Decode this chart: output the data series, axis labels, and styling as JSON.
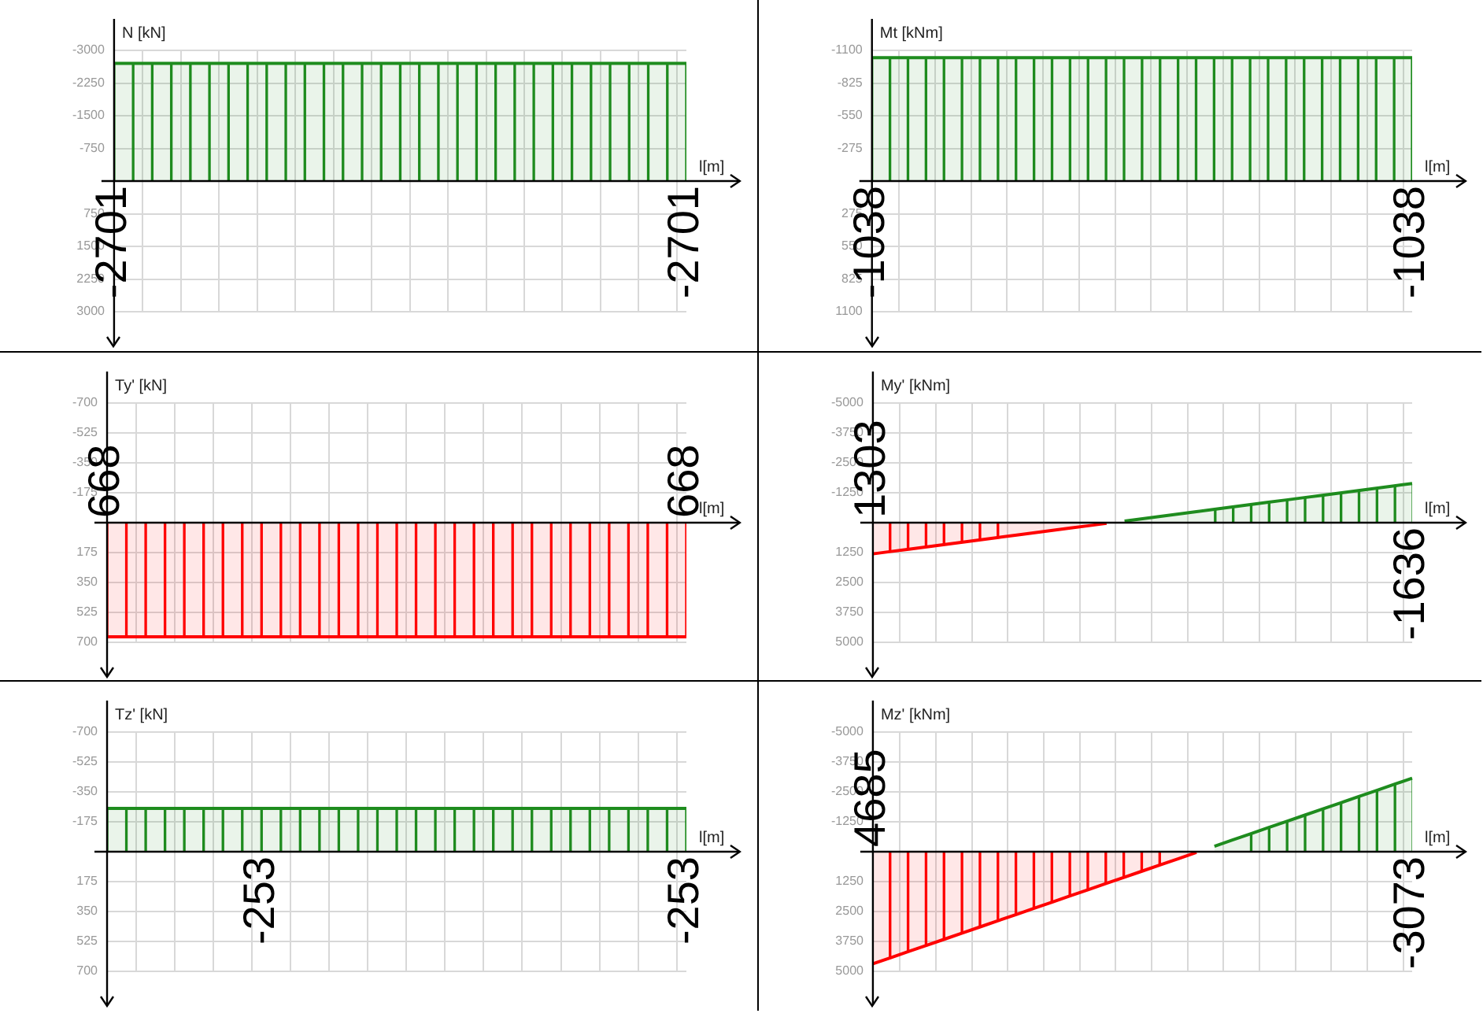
{
  "chart_data": [
    {
      "type": "area",
      "ylabel": "N [kN]",
      "xlabel": "l[m]",
      "categories": [
        null,
        null,
        null,
        null,
        null,
        null,
        null,
        null,
        null,
        null,
        null,
        null,
        null,
        null,
        null,
        null,
        null,
        null,
        null,
        null,
        null,
        null,
        null,
        null,
        null,
        null,
        null,
        null,
        null,
        null,
        null
      ],
      "series": [
        {
          "color": "#1e8c1e",
          "values": [
            -2701,
            -2701,
            -2701,
            -2701,
            -2701,
            -2701,
            -2701,
            -2701,
            -2701,
            -2701,
            -2701,
            -2701,
            -2701,
            -2701,
            -2701,
            -2701,
            -2701,
            -2701,
            -2701,
            -2701,
            -2701,
            -2701,
            -2701,
            -2701,
            -2701,
            -2701,
            -2701,
            -2701,
            -2701,
            -2701,
            -2701
          ],
          "value_labels": [
            "-2701",
            null,
            null,
            null,
            null,
            null,
            null,
            null,
            null,
            null,
            null,
            null,
            null,
            null,
            null,
            null,
            null,
            null,
            null,
            null,
            null,
            null,
            null,
            null,
            null,
            null,
            null,
            null,
            null,
            null,
            "-2701"
          ]
        }
      ],
      "ylim": [
        3000,
        -3000
      ],
      "yticks": [
        -3000,
        -2250,
        -1500,
        -750,
        750,
        1500,
        2250,
        3000
      ],
      "grid": true,
      "tick_labels": "y"
    },
    {
      "type": "area",
      "ylabel": "Mt [kNm]",
      "xlabel": "l[m]",
      "categories": [
        null,
        null,
        null,
        null,
        null,
        null,
        null,
        null,
        null,
        null,
        null,
        null,
        null,
        null,
        null,
        null,
        null,
        null,
        null,
        null,
        null,
        null,
        null,
        null,
        null,
        null,
        null,
        null,
        null,
        null,
        null
      ],
      "series": [
        {
          "color": "#1e8c1e",
          "values": [
            -1038,
            -1038,
            -1038,
            -1038,
            -1038,
            -1038,
            -1038,
            -1038,
            -1038,
            -1038,
            -1038,
            -1038,
            -1038,
            -1038,
            -1038,
            -1038,
            -1038,
            -1038,
            -1038,
            -1038,
            -1038,
            -1038,
            -1038,
            -1038,
            -1038,
            -1038,
            -1038,
            -1038,
            -1038,
            -1038,
            -1038
          ],
          "value_labels": [
            "-1038",
            null,
            null,
            null,
            null,
            null,
            null,
            null,
            null,
            null,
            null,
            null,
            null,
            null,
            null,
            null,
            null,
            null,
            null,
            null,
            null,
            null,
            null,
            null,
            null,
            null,
            null,
            null,
            null,
            null,
            "-1038"
          ]
        }
      ],
      "ylim": [
        1100,
        -1100
      ],
      "yticks": [
        -1100,
        -825,
        -550,
        -275,
        275,
        550,
        825,
        1100
      ],
      "grid": true,
      "tick_labels": "y"
    },
    {
      "type": "area",
      "ylabel": "Ty' [kN]",
      "xlabel": "l[m]",
      "categories": [
        null,
        null,
        null,
        null,
        null,
        null,
        null,
        null,
        null,
        null,
        null,
        null,
        null,
        null,
        null,
        null,
        null,
        null,
        null,
        null,
        null,
        null,
        null,
        null,
        null,
        null,
        null,
        null,
        null,
        null,
        null
      ],
      "series": [
        {
          "color": "#ff0000",
          "values": [
            668,
            668,
            668,
            668,
            668,
            668,
            668,
            668,
            668,
            668,
            668,
            668,
            668,
            668,
            668,
            668,
            668,
            668,
            668,
            668,
            668,
            668,
            668,
            668,
            668,
            668,
            668,
            668,
            668,
            668,
            668
          ],
          "value_labels": [
            "668",
            null,
            null,
            null,
            null,
            null,
            null,
            null,
            null,
            null,
            null,
            null,
            null,
            null,
            null,
            null,
            null,
            null,
            null,
            null,
            null,
            null,
            null,
            null,
            null,
            null,
            null,
            null,
            null,
            null,
            "668"
          ]
        }
      ],
      "ylim": [
        700,
        -700
      ],
      "yticks": [
        -700,
        -525,
        -350,
        -175,
        175,
        350,
        525,
        700
      ],
      "grid": true,
      "tick_labels": "y"
    },
    {
      "type": "area",
      "ylabel": "My' [kNm]",
      "xlabel": "l[m]",
      "categories": [
        null,
        null,
        null,
        null,
        null,
        null,
        null,
        null,
        null,
        null,
        null,
        null,
        null,
        null,
        null,
        null,
        null,
        null,
        null,
        null,
        null,
        null,
        null,
        null,
        null,
        null,
        null,
        null,
        null,
        null,
        null
      ],
      "series": [
        {
          "color": "#ff0000",
          "values": [
            1303,
            1205,
            1107,
            1009,
            911,
            813,
            715,
            617,
            519,
            421,
            323,
            225,
            127,
            29,
            null,
            null,
            null,
            null,
            null,
            null,
            null,
            null,
            null,
            null,
            null,
            null,
            null,
            null,
            null,
            null,
            null
          ],
          "value_labels": [
            "1303",
            null,
            null,
            null,
            null,
            null,
            null,
            null,
            null,
            null,
            null,
            null,
            null,
            null,
            null,
            null,
            null,
            null,
            null,
            null,
            null,
            null,
            null,
            null,
            null,
            null,
            null,
            null,
            null,
            null,
            null
          ]
        },
        {
          "color": "#1e8c1e",
          "values": [
            null,
            null,
            null,
            null,
            null,
            null,
            null,
            null,
            null,
            null,
            null,
            null,
            null,
            null,
            -69,
            -167,
            -265,
            -363,
            -461,
            -559,
            -656,
            -754,
            -852,
            -950,
            -1048,
            -1146,
            -1244,
            -1342,
            -1440,
            -1538,
            -1636
          ],
          "value_labels": [
            null,
            null,
            null,
            null,
            null,
            null,
            null,
            null,
            null,
            null,
            null,
            null,
            null,
            null,
            null,
            null,
            null,
            null,
            null,
            null,
            null,
            null,
            null,
            null,
            null,
            null,
            null,
            null,
            null,
            null,
            "-1636"
          ]
        }
      ],
      "ylim": [
        5000,
        -5000
      ],
      "yticks": [
        -5000,
        -3750,
        -2500,
        -1250,
        1250,
        2500,
        3750,
        5000
      ],
      "grid": true,
      "tick_labels": "y"
    },
    {
      "type": "area",
      "ylabel": "Tz' [kN]",
      "xlabel": "l[m]",
      "categories": [
        null,
        null,
        null,
        null,
        null,
        null,
        null,
        null,
        null,
        null,
        null,
        null,
        null,
        null,
        null,
        null,
        null,
        null,
        null,
        null,
        null,
        null,
        null,
        null,
        null,
        null,
        null,
        null,
        null,
        null,
        null
      ],
      "series": [
        {
          "color": "#1e8c1e",
          "values": [
            -253,
            -253,
            -253,
            -253,
            -253,
            -253,
            -253,
            -253,
            -253,
            -253,
            -253,
            -253,
            -253,
            -253,
            -253,
            -253,
            -253,
            -253,
            -253,
            -253,
            -253,
            -253,
            -253,
            -253,
            -253,
            -253,
            -253,
            -253,
            -253,
            -253,
            -253
          ],
          "value_labels": [
            null,
            null,
            null,
            null,
            null,
            null,
            null,
            null,
            "-253",
            null,
            null,
            null,
            null,
            null,
            null,
            null,
            null,
            null,
            null,
            null,
            null,
            null,
            null,
            null,
            null,
            null,
            null,
            null,
            null,
            null,
            "-253"
          ]
        }
      ],
      "ylim": [
        700,
        -700
      ],
      "yticks": [
        -700,
        -525,
        -350,
        -175,
        175,
        350,
        525,
        700
      ],
      "grid": true,
      "tick_labels": "y"
    },
    {
      "type": "area",
      "ylabel": "Mz' [kNm]",
      "xlabel": "l[m]",
      "categories": [
        null,
        null,
        null,
        null,
        null,
        null,
        null,
        null,
        null,
        null,
        null,
        null,
        null,
        null,
        null,
        null,
        null,
        null,
        null,
        null,
        null,
        null,
        null,
        null,
        null,
        null,
        null,
        null,
        null,
        null,
        null
      ],
      "series": [
        {
          "color": "#ff0000",
          "values": [
            4685,
            4426,
            4168,
            3909,
            3651,
            3392,
            3133,
            2875,
            2616,
            2358,
            2099,
            1841,
            1582,
            1323,
            1065,
            806,
            548,
            289,
            30,
            null,
            null,
            null,
            null,
            null,
            null,
            null,
            null,
            null,
            null,
            null,
            null
          ],
          "value_labels": [
            "4685",
            null,
            null,
            null,
            null,
            null,
            null,
            null,
            null,
            null,
            null,
            null,
            null,
            null,
            null,
            null,
            null,
            null,
            null,
            null,
            null,
            null,
            null,
            null,
            null,
            null,
            null,
            null,
            null,
            null,
            null
          ]
        },
        {
          "color": "#1e8c1e",
          "values": [
            null,
            null,
            null,
            null,
            null,
            null,
            null,
            null,
            null,
            null,
            null,
            null,
            null,
            null,
            null,
            null,
            null,
            null,
            null,
            -228,
            -487,
            -745,
            -1004,
            -1263,
            -1521,
            -1780,
            -2038,
            -2297,
            -2555,
            -2814,
            -3073
          ],
          "value_labels": [
            null,
            null,
            null,
            null,
            null,
            null,
            null,
            null,
            null,
            null,
            null,
            null,
            null,
            null,
            null,
            null,
            null,
            null,
            null,
            null,
            null,
            null,
            null,
            null,
            null,
            null,
            null,
            null,
            null,
            null,
            "-3073"
          ]
        }
      ],
      "ylim": [
        5000,
        -5000
      ],
      "yticks": [
        -5000,
        -3750,
        -2500,
        -1250,
        1250,
        2500,
        3750,
        5000
      ],
      "grid": true,
      "tick_labels": "y"
    }
  ]
}
